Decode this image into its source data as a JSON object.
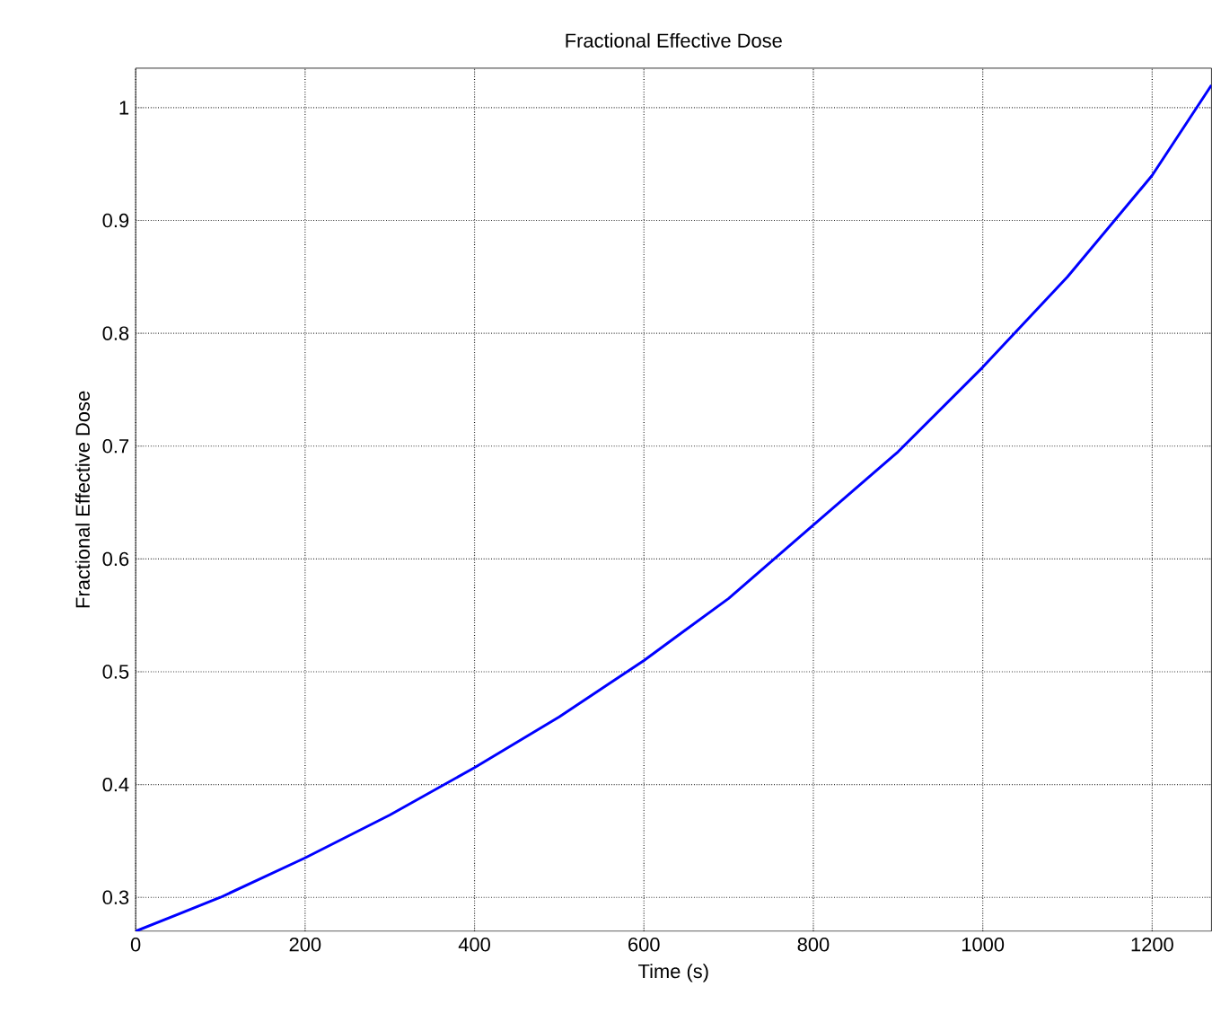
{
  "chart_data": {
    "type": "line",
    "title": "Fractional Effective Dose",
    "xlabel": "Time (s)",
    "ylabel": "Fractional Effective Dose",
    "x": [
      0,
      100,
      200,
      300,
      400,
      500,
      600,
      700,
      800,
      900,
      1000,
      1100,
      1200,
      1270
    ],
    "series": [
      {
        "color": "#0000ff",
        "values": [
          0.27,
          0.3,
          0.335,
          0.373,
          0.415,
          0.46,
          0.51,
          0.565,
          0.63,
          0.695,
          0.77,
          0.85,
          0.94,
          1.02
        ]
      }
    ],
    "xlim": [
      0,
      1270
    ],
    "ylim": [
      0.27,
      1.035
    ],
    "xticks": [
      0,
      200,
      400,
      600,
      800,
      1000,
      1200
    ],
    "yticks": [
      0.3,
      0.4,
      0.5,
      0.6,
      0.7,
      0.8,
      0.9,
      1
    ],
    "grid": true,
    "line_style": "solid"
  }
}
